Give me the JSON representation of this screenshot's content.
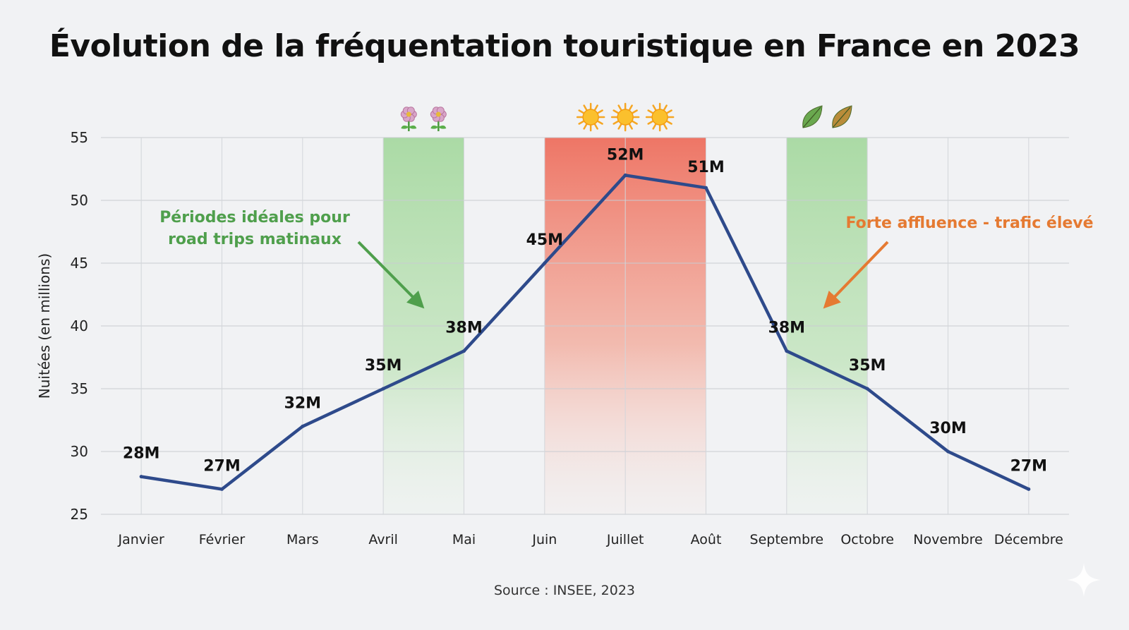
{
  "chart_data": {
    "type": "line",
    "title": "Évolution de la fréquentation touristique en France en 2023",
    "ylabel": "Nuitées (en millions)",
    "xlabel": "",
    "ylim": [
      25,
      55
    ],
    "yticks": [
      25,
      30,
      35,
      40,
      45,
      50,
      55
    ],
    "grid": true,
    "categories": [
      "Janvier",
      "Février",
      "Mars",
      "Avril",
      "Mai",
      "Juin",
      "Juillet",
      "Août",
      "Septembre",
      "Octobre",
      "Novembre",
      "Décembre"
    ],
    "series": [
      {
        "name": "Nuitées",
        "color": "#2e4a8b",
        "values": [
          28,
          27,
          32,
          35,
          38,
          45,
          52,
          51,
          38,
          35,
          30,
          27
        ],
        "labels": [
          "28M",
          "27M",
          "32M",
          "35M",
          "38M",
          "45M",
          "52M",
          "51M",
          "38M",
          "35M",
          "30M",
          "27M"
        ]
      }
    ],
    "bands": [
      {
        "name": "spring",
        "from": "Avril",
        "to": "Mai",
        "color": "#9fd69a",
        "icon": "flower-icon",
        "icon_count": 2
      },
      {
        "name": "summer",
        "from": "Juin",
        "to": "Août",
        "color": "#ee7060",
        "icon": "sun-icon",
        "icon_count": 3
      },
      {
        "name": "autumn",
        "from": "Septembre",
        "to": "Octobre",
        "color": "#9fd69a",
        "icon": "leaf-icon",
        "icon_count": 2
      }
    ],
    "annotations": [
      {
        "name": "ideal-periods",
        "lines": [
          "Périodes idéales pour",
          "road trips matinaux"
        ],
        "color": "#4f9f4c"
      },
      {
        "name": "high-traffic",
        "lines": [
          "Forte affluence - trafic élevé"
        ],
        "color": "#e57a32"
      }
    ],
    "source": "Source : INSEE, 2023"
  }
}
